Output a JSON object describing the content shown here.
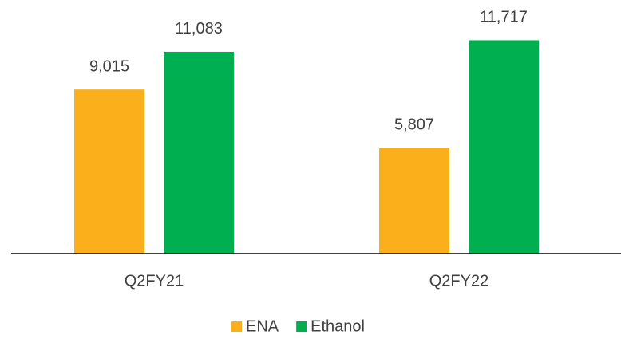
{
  "chart_data": {
    "type": "bar",
    "categories": [
      "Q2FY21",
      "Q2FY22"
    ],
    "series": [
      {
        "name": "ENA",
        "color": "#fbaf1b",
        "values": [
          9015,
          5807
        ],
        "value_labels": [
          "9,015",
          "5,807"
        ]
      },
      {
        "name": "Ethanol",
        "color": "#00b050",
        "values": [
          11083,
          11717
        ],
        "value_labels": [
          "11,083",
          "11,717"
        ]
      }
    ],
    "ylim": [
      0,
      12000
    ],
    "legend": "bottom"
  }
}
